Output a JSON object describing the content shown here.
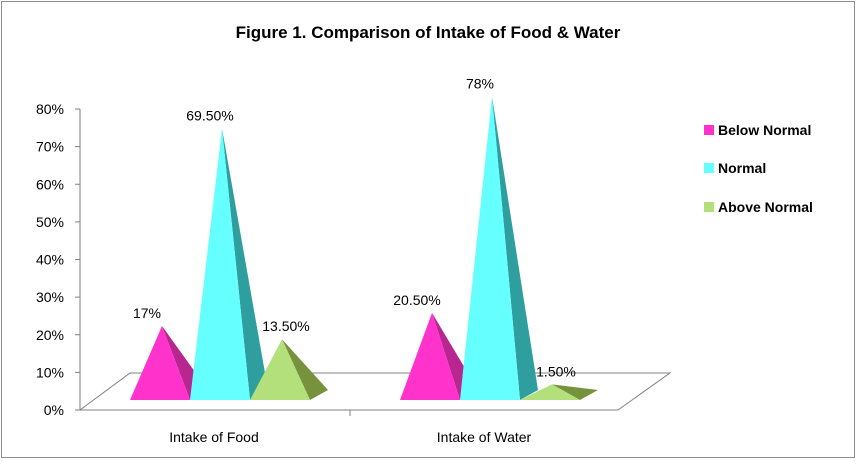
{
  "chart_data": {
    "type": "bar",
    "title": "Figure 1. Comparison of Intake of Food & Water",
    "categories": [
      "Intake of Food",
      "Intake of Water"
    ],
    "series": [
      {
        "name": "Below Normal",
        "values": [
          17,
          20.5
        ],
        "labels": [
          "17%",
          "20.50%"
        ],
        "color": "#ff33cc",
        "shade": "#b8268f"
      },
      {
        "name": "Normal",
        "values": [
          69.5,
          78
        ],
        "labels": [
          "69.50%",
          "78%"
        ],
        "color": "#66ffff",
        "shade": "#2e9e9e"
      },
      {
        "name": "Above Normal",
        "values": [
          13.5,
          1.5
        ],
        "labels": [
          "13.50%",
          "1.50%"
        ],
        "color": "#b3e07a",
        "shade": "#76923c"
      }
    ],
    "y_ticks": [
      "0%",
      "10%",
      "20%",
      "30%",
      "40%",
      "50%",
      "60%",
      "70%",
      "80%"
    ],
    "ylim": [
      0,
      80
    ],
    "xlabel": "",
    "ylabel": "",
    "legend_position": "right",
    "mark_shape": "pyramid",
    "grid": false
  }
}
